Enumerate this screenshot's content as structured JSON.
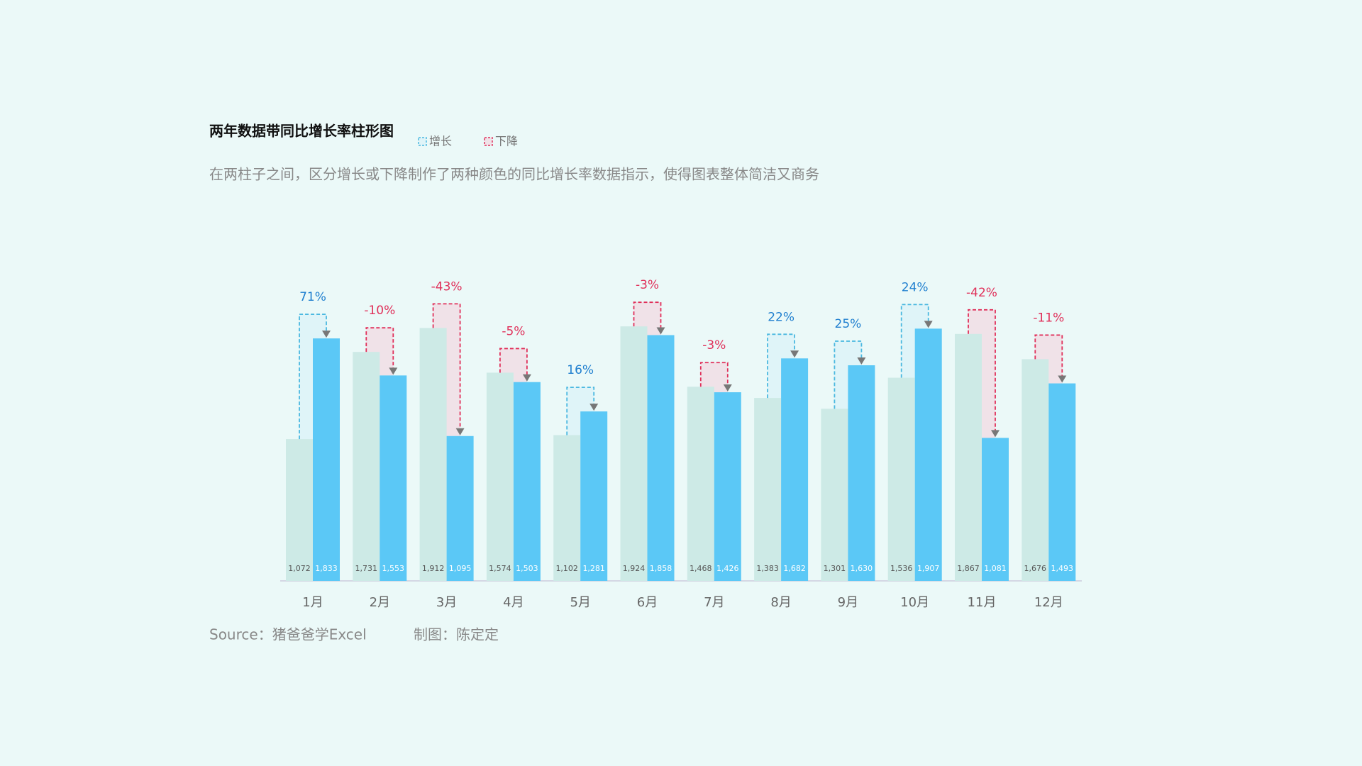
{
  "chart_data": {
    "type": "bar",
    "title": "两年数据带同比增长率柱形图",
    "subtitle": "在两柱子之间，区分增长或下降制作了两种颜色的同比增长率数据指示，使得图表整体简洁又商务",
    "legend": [
      {
        "label": "增长",
        "color": "#4ab8e0",
        "text_color": "#1f7fcf",
        "fill": "#dff4f8"
      },
      {
        "label": "下降",
        "color": "#e0305a",
        "text_color": "#e0305a",
        "fill": "#f0e2e8"
      }
    ],
    "categories": [
      "1月",
      "2月",
      "3月",
      "4月",
      "5月",
      "6月",
      "7月",
      "8月",
      "9月",
      "10月",
      "11月",
      "12月"
    ],
    "series": [
      {
        "color": "#cdeae6",
        "values": [
          1072,
          1731,
          1912,
          1574,
          1102,
          1924,
          1468,
          1383,
          1301,
          1536,
          1867,
          1676
        ],
        "value_labels": [
          "1,072",
          "1,731",
          "1,912",
          "1,574",
          "1,102",
          "1,924",
          "1,468",
          "1,383",
          "1,301",
          "1,536",
          "1,867",
          "1,676"
        ]
      },
      {
        "color": "#5bc8f6",
        "values": [
          1833,
          1553,
          1095,
          1503,
          1281,
          1858,
          1426,
          1682,
          1630,
          1907,
          1081,
          1493
        ],
        "value_labels": [
          "1,833",
          "1,553",
          "1,095",
          "1,503",
          "1,281",
          "1,858",
          "1,426",
          "1,682",
          "1,630",
          "1,907",
          "1,081",
          "1,493"
        ]
      }
    ],
    "change": {
      "values": [
        71,
        -10,
        -43,
        -5,
        16,
        -3,
        -3,
        22,
        25,
        24,
        -42,
        -11
      ],
      "value_labels": [
        "71%",
        "-10%",
        "-43%",
        "-5%",
        "16%",
        "-3%",
        "-3%",
        "22%",
        "25%",
        "24%",
        "-42%",
        "-11%"
      ]
    },
    "source": "Source：猪爸爸学Excel",
    "credit": "制图：陈定定"
  }
}
